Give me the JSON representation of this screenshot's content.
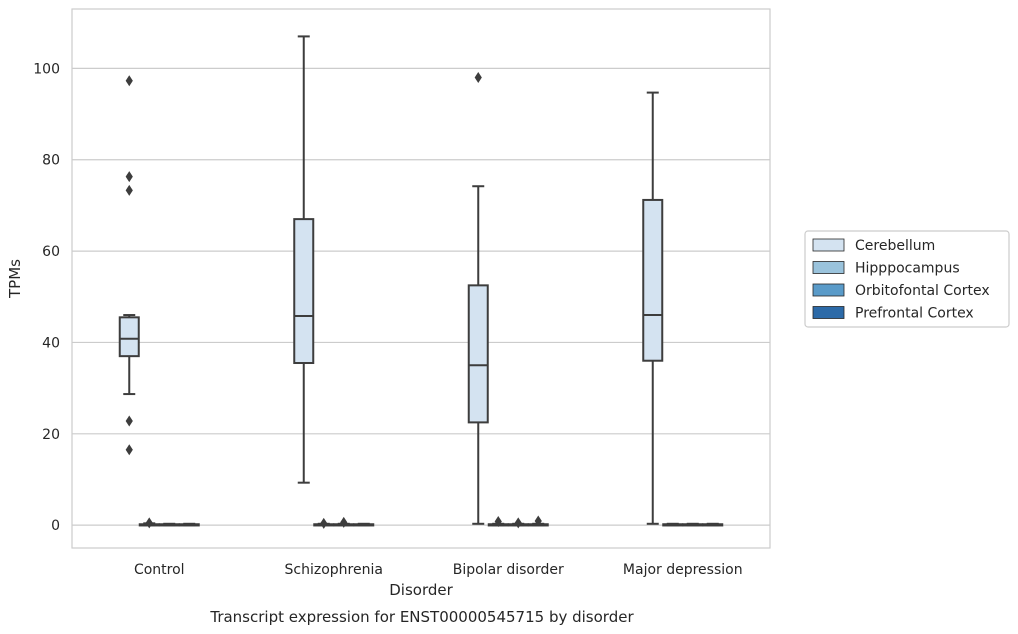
{
  "chart_data": {
    "type": "box",
    "caption": "Transcript expression for ENST00000545715 by disorder",
    "xlabel": "Disorder",
    "ylabel": "TPMs",
    "ylim": [
      -5,
      113
    ],
    "yticks": [
      0,
      20,
      40,
      60,
      80,
      100
    ],
    "categories": [
      "Control",
      "Schizophrenia",
      "Bipolar disorder",
      "Major depression"
    ],
    "grid": "horizontal",
    "legend_position": "right",
    "series": [
      {
        "name": "Cerebellum",
        "color": "#d4e3f1",
        "boxes": [
          {
            "whisker_low": 28.7,
            "q1": 37,
            "median": 40.8,
            "q3": 45.5,
            "whisker_high": 46,
            "outliers": [
              16.5,
              22.8,
              73.3,
              76.3,
              97.3
            ]
          },
          {
            "whisker_low": 9.3,
            "q1": 35.5,
            "median": 45.8,
            "q3": 67,
            "whisker_high": 107,
            "outliers": []
          },
          {
            "whisker_low": 0.3,
            "q1": 22.5,
            "median": 35,
            "q3": 52.5,
            "whisker_high": 74.2,
            "outliers": [
              98
            ]
          },
          {
            "whisker_low": 0.3,
            "q1": 36,
            "median": 46,
            "q3": 71.2,
            "whisker_high": 94.7,
            "outliers": []
          }
        ]
      },
      {
        "name": "Hipppocampus",
        "color": "#9ac3dc",
        "boxes": [
          {
            "whisker_low": 0,
            "q1": 0,
            "median": 0.1,
            "q3": 0.2,
            "whisker_high": 0.4,
            "outliers": [
              0.5
            ]
          },
          {
            "whisker_low": 0,
            "q1": 0,
            "median": 0.1,
            "q3": 0.2,
            "whisker_high": 0.3,
            "outliers": [
              0.4
            ]
          },
          {
            "whisker_low": 0,
            "q1": 0,
            "median": 0.1,
            "q3": 0.2,
            "whisker_high": 0.3,
            "outliers": [
              0.8
            ]
          },
          {
            "whisker_low": 0,
            "q1": 0,
            "median": 0.1,
            "q3": 0.2,
            "whisker_high": 0.3,
            "outliers": []
          }
        ]
      },
      {
        "name": "Orbitofontal Cortex",
        "color": "#5a9bc9",
        "boxes": [
          {
            "whisker_low": 0,
            "q1": 0,
            "median": 0.1,
            "q3": 0.2,
            "whisker_high": 0.3,
            "outliers": []
          },
          {
            "whisker_low": 0,
            "q1": 0,
            "median": 0.1,
            "q3": 0.2,
            "whisker_high": 0.3,
            "outliers": [
              0.6
            ]
          },
          {
            "whisker_low": 0,
            "q1": 0,
            "median": 0.1,
            "q3": 0.2,
            "whisker_high": 0.3,
            "outliers": [
              0.5
            ]
          },
          {
            "whisker_low": 0,
            "q1": 0,
            "median": 0.1,
            "q3": 0.2,
            "whisker_high": 0.3,
            "outliers": []
          }
        ]
      },
      {
        "name": "Prefrontal Cortex",
        "color": "#2c6aa8",
        "boxes": [
          {
            "whisker_low": 0,
            "q1": 0,
            "median": 0.1,
            "q3": 0.2,
            "whisker_high": 0.3,
            "outliers": []
          },
          {
            "whisker_low": 0,
            "q1": 0,
            "median": 0.1,
            "q3": 0.2,
            "whisker_high": 0.3,
            "outliers": []
          },
          {
            "whisker_low": 0,
            "q1": 0,
            "median": 0.1,
            "q3": 0.2,
            "whisker_high": 0.3,
            "outliers": [
              0.9
            ]
          },
          {
            "whisker_low": 0,
            "q1": 0,
            "median": 0.1,
            "q3": 0.2,
            "whisker_high": 0.3,
            "outliers": []
          }
        ]
      }
    ]
  }
}
